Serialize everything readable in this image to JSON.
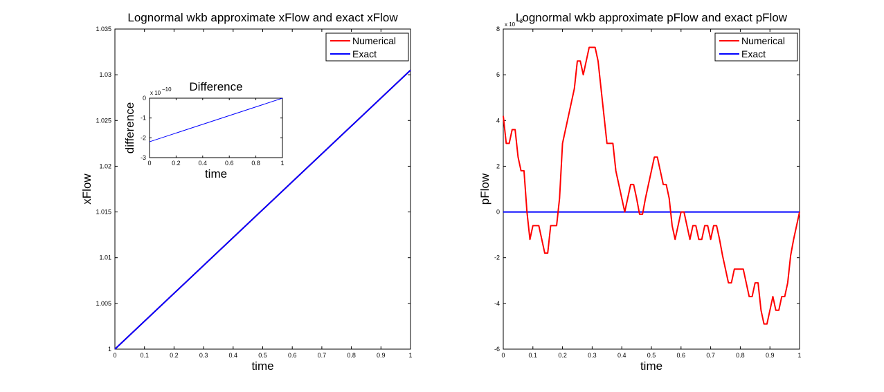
{
  "chart_data": [
    {
      "type": "line",
      "title": "Lognormal wkb approximate xFlow and exact xFlow",
      "xlabel": "time",
      "ylabel": "xFlow",
      "xlim": [
        0,
        1
      ],
      "ylim": [
        1,
        1.035
      ],
      "xticks": [
        "0",
        "0.1",
        "0.2",
        "0.3",
        "0.4",
        "0.5",
        "0.6",
        "0.7",
        "0.8",
        "0.9",
        "1"
      ],
      "yticks": [
        "1",
        "1.005",
        "1.01",
        "1.015",
        "1.02",
        "1.025",
        "1.03",
        "1.035"
      ],
      "legend_position": "top-right",
      "series": [
        {
          "name": "Numerical",
          "color": "#ff0000",
          "x": [
            0,
            1
          ],
          "y": [
            1,
            1.0305
          ]
        },
        {
          "name": "Exact",
          "color": "#0000ff",
          "x": [
            0,
            1
          ],
          "y": [
            1,
            1.0305
          ]
        }
      ],
      "inset": {
        "type": "line",
        "title": "Difference",
        "xlabel": "time",
        "ylabel": "difference",
        "exponent_label": "x 10",
        "exponent_power": "−10",
        "xlim": [
          0,
          1
        ],
        "ylim": [
          -3,
          0
        ],
        "xticks": [
          "0",
          "0.2",
          "0.4",
          "0.6",
          "0.8",
          "1"
        ],
        "yticks": [
          "0",
          "-1",
          "-2",
          "-3"
        ],
        "series": [
          {
            "color": "#0000ff",
            "x": [
              0,
              1
            ],
            "y": [
              -2.2,
              0
            ]
          }
        ]
      }
    },
    {
      "type": "line",
      "title": "Lognormal wkb approximate pFlow and exact pFlow",
      "xlabel": "time",
      "ylabel": "pFlow",
      "exponent_label": "x 10",
      "exponent_power": "−3",
      "xlim": [
        0,
        1
      ],
      "ylim": [
        -6,
        8
      ],
      "xticks": [
        "0",
        "0.1",
        "0.2",
        "0.3",
        "0.4",
        "0.5",
        "0.6",
        "0.7",
        "0.8",
        "0.9",
        "1"
      ],
      "yticks": [
        "8",
        "6",
        "4",
        "2",
        "0",
        "-2",
        "-4",
        "-6"
      ],
      "legend_position": "top-right",
      "series": [
        {
          "name": "Numerical",
          "color": "#ff0000",
          "x": [
            0,
            0.01,
            0.02,
            0.03,
            0.04,
            0.05,
            0.06,
            0.07,
            0.08,
            0.09,
            0.1,
            0.11,
            0.12,
            0.13,
            0.14,
            0.15,
            0.16,
            0.17,
            0.18,
            0.19,
            0.2,
            0.21,
            0.22,
            0.23,
            0.24,
            0.25,
            0.26,
            0.27,
            0.28,
            0.29,
            0.3,
            0.31,
            0.32,
            0.33,
            0.34,
            0.35,
            0.36,
            0.37,
            0.38,
            0.39,
            0.4,
            0.41,
            0.42,
            0.43,
            0.44,
            0.45,
            0.46,
            0.47,
            0.48,
            0.49,
            0.5,
            0.51,
            0.52,
            0.53,
            0.54,
            0.55,
            0.56,
            0.57,
            0.58,
            0.59,
            0.6,
            0.61,
            0.62,
            0.63,
            0.64,
            0.65,
            0.66,
            0.67,
            0.68,
            0.69,
            0.7,
            0.71,
            0.72,
            0.73,
            0.74,
            0.75,
            0.76,
            0.77,
            0.78,
            0.79,
            0.8,
            0.81,
            0.82,
            0.83,
            0.84,
            0.85,
            0.86,
            0.87,
            0.88,
            0.89,
            0.9,
            0.91,
            0.92,
            0.93,
            0.94,
            0.95,
            0.96,
            0.97,
            0.98,
            0.99,
            1
          ],
          "y": [
            4.2,
            3.0,
            3.0,
            3.6,
            3.6,
            2.4,
            1.8,
            1.8,
            0.0,
            -1.2,
            -0.6,
            -0.6,
            -0.6,
            -1.2,
            -1.8,
            -1.8,
            -0.6,
            -0.6,
            -0.6,
            0.6,
            3.0,
            3.6,
            4.2,
            4.8,
            5.4,
            6.6,
            6.6,
            6.0,
            6.6,
            7.2,
            7.2,
            7.2,
            6.6,
            5.4,
            4.2,
            3.0,
            3.0,
            3.0,
            1.8,
            1.2,
            0.6,
            0.0,
            0.6,
            1.2,
            1.2,
            0.6,
            -0.1,
            -0.1,
            0.6,
            1.2,
            1.8,
            2.4,
            2.4,
            1.8,
            1.2,
            1.2,
            0.6,
            -0.6,
            -1.2,
            -0.6,
            0.0,
            0.0,
            -0.6,
            -1.2,
            -0.6,
            -0.6,
            -1.2,
            -1.2,
            -0.6,
            -0.6,
            -1.2,
            -0.6,
            -0.6,
            -1.2,
            -1.9,
            -2.5,
            -3.1,
            -3.1,
            -2.5,
            -2.5,
            -2.5,
            -2.5,
            -3.1,
            -3.7,
            -3.7,
            -3.1,
            -3.1,
            -4.3,
            -4.9,
            -4.9,
            -4.3,
            -3.7,
            -4.3,
            -4.3,
            -3.7,
            -3.7,
            -3.1,
            -1.9,
            -1.2,
            -0.6,
            0.0
          ]
        },
        {
          "name": "Exact",
          "color": "#0000ff",
          "x": [
            0,
            1
          ],
          "y": [
            0,
            0
          ]
        }
      ]
    }
  ]
}
